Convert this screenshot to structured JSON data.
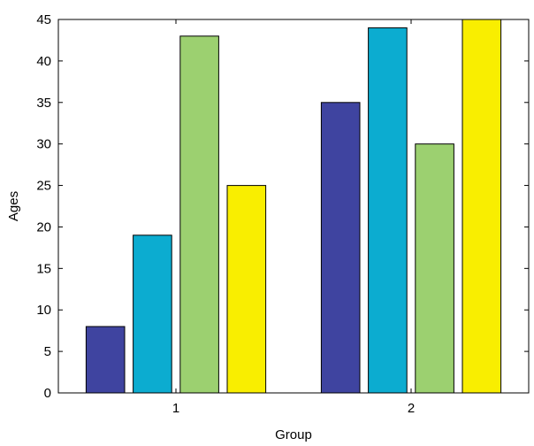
{
  "chart_data": {
    "type": "bar",
    "categories": [
      "1",
      "2"
    ],
    "series": [
      {
        "values": [
          8,
          35
        ],
        "color": "#3f44a0"
      },
      {
        "values": [
          19,
          44
        ],
        "color": "#0cacd0"
      },
      {
        "values": [
          43,
          30
        ],
        "color": "#9cd070"
      },
      {
        "values": [
          25,
          45
        ],
        "color": "#f9ee00"
      }
    ],
    "xlabel": "Group",
    "ylabel": "Ages",
    "ylim": [
      0,
      45
    ],
    "yticks": [
      "0",
      "5",
      "10",
      "15",
      "20",
      "25",
      "30",
      "35",
      "40",
      "45"
    ],
    "grid": false,
    "legend": "none"
  }
}
